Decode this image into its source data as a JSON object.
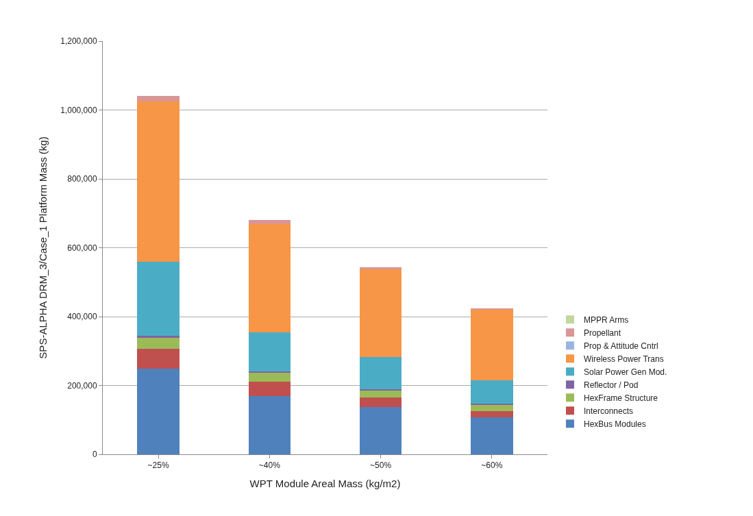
{
  "chart_data": {
    "type": "bar",
    "stacked": true,
    "xlabel": "WPT Module Areal Mass (kg/m2)",
    "ylabel": "SPS-ALPHA DRM_3/Case_1 Platform Mass (kg)",
    "categories": [
      "~25%",
      "~40%",
      "~50%",
      "~60%"
    ],
    "series": [
      {
        "name": "HexBus Modules",
        "color": "#4f81bd",
        "values": [
          248000,
          169000,
          137000,
          108000
        ]
      },
      {
        "name": "Interconnects",
        "color": "#c0504d",
        "values": [
          59000,
          42000,
          28000,
          18000
        ]
      },
      {
        "name": "HexFrame Structure",
        "color": "#9bbb59",
        "values": [
          32000,
          25000,
          22000,
          18000
        ]
      },
      {
        "name": "Reflector / Pod",
        "color": "#8064a2",
        "values": [
          5000,
          4000,
          3000,
          3000
        ]
      },
      {
        "name": "Solar Power Gen Mod.",
        "color": "#4bacc6",
        "values": [
          216000,
          115000,
          92000,
          68000
        ]
      },
      {
        "name": "Wireless Power Trans",
        "color": "#f79646",
        "values": [
          465000,
          314000,
          256000,
          204000
        ]
      },
      {
        "name": "Prop & Attitude Cntrl",
        "color": "#9ab5e4",
        "values": [
          null,
          null,
          null,
          null
        ]
      },
      {
        "name": "Propellant",
        "color": "#d99694",
        "values": [
          16000,
          12000,
          6000,
          5000
        ]
      },
      {
        "name": "MPPR Arms",
        "color": "#c3d69b",
        "values": [
          null,
          null,
          null,
          null
        ]
      }
    ],
    "ylim": [
      0,
      1200000
    ],
    "yticks": [
      {
        "value": 0,
        "label": "0"
      },
      {
        "value": 200000,
        "label": "200,000"
      },
      {
        "value": 400000,
        "label": "400,000"
      },
      {
        "value": 600000,
        "label": "600,000"
      },
      {
        "value": 800000,
        "label": "800,000"
      },
      {
        "value": 1000000,
        "label": "1,000,000"
      },
      {
        "value": 1200000,
        "label": "1,200,000"
      }
    ],
    "grid": "y",
    "legend": "right"
  }
}
